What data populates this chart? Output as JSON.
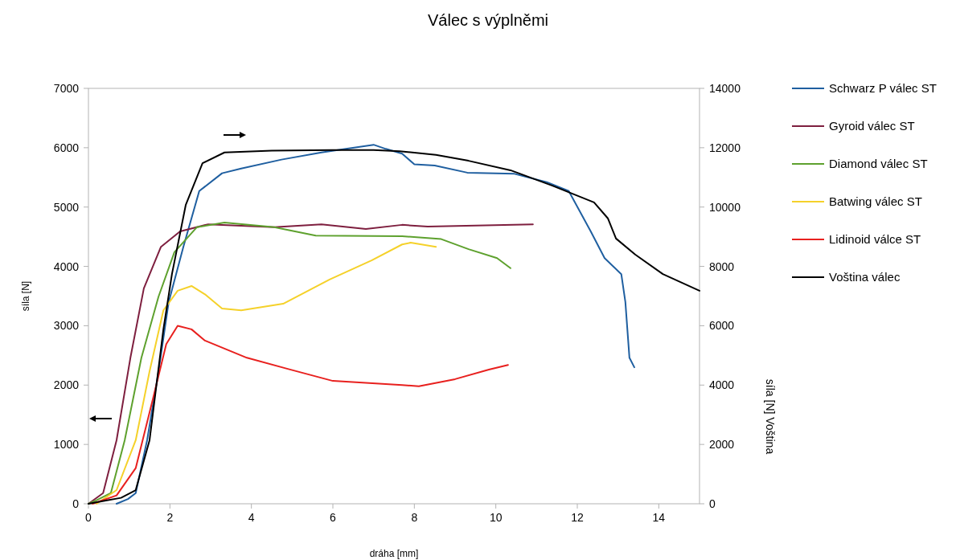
{
  "chart_data": {
    "type": "line",
    "title": "Válec s výplněmi",
    "xlabel": "dráha [mm]",
    "ylabel": "síla [N]",
    "y2label": "síla [N] Voština",
    "xlim": [
      0,
      15
    ],
    "xticks": [
      0,
      2,
      4,
      6,
      8,
      10,
      12,
      14
    ],
    "ylim": [
      0,
      7000
    ],
    "yticks": [
      0,
      1000,
      2000,
      3000,
      4000,
      5000,
      6000,
      7000
    ],
    "y2lim": [
      0,
      14000
    ],
    "y2ticks": [
      0,
      2000,
      4000,
      6000,
      8000,
      10000,
      12000,
      14000
    ],
    "grid": false,
    "legend": "right",
    "line_style": "solid",
    "series": [
      {
        "name": "Schwarz P válec ST",
        "color": "#1f5fa0",
        "x": [
          0.69,
          0.97,
          1.16,
          1.44,
          1.72,
          1.97,
          2.33,
          2.72,
          3.28,
          3.75,
          4.74,
          5.72,
          6.32,
          7.0,
          7.3,
          7.7,
          8.0,
          8.5,
          9.3,
          10.46,
          11.25,
          11.79,
          12.33,
          12.67,
          13.08,
          13.18,
          13.28,
          13.4
        ],
        "values": [
          0,
          80,
          180,
          1070,
          2230,
          3400,
          4330,
          5270,
          5570,
          5650,
          5800,
          5920,
          5980,
          6050,
          5980,
          5900,
          5720,
          5700,
          5580,
          5560,
          5420,
          5270,
          4590,
          4140,
          3870,
          3400,
          2460,
          2300
        ]
      },
      {
        "name": "Gyroid válec ST",
        "color": "#7e1f3f",
        "x": [
          0,
          0.36,
          0.69,
          1.03,
          1.36,
          1.78,
          2.25,
          2.94,
          4.56,
          5.72,
          6.81,
          7.7,
          8.33,
          10.91
        ],
        "values": [
          0,
          180,
          1070,
          2460,
          3630,
          4330,
          4590,
          4710,
          4660,
          4710,
          4630,
          4700,
          4670,
          4710
        ]
      },
      {
        "name": "Diamond válec ST",
        "color": "#5ea12e",
        "x": [
          0,
          0.14,
          0.55,
          0.89,
          1.3,
          1.72,
          2.11,
          2.66,
          3.34,
          4.56,
          5.58,
          7.7,
          8.66,
          9.33,
          10.03,
          10.36
        ],
        "values": [
          0,
          40,
          180,
          1070,
          2460,
          3490,
          4240,
          4660,
          4740,
          4660,
          4520,
          4510,
          4460,
          4290,
          4140,
          3970
        ]
      },
      {
        "name": "Batwing válec ST",
        "color": "#f5d12a",
        "x": [
          0.2,
          0.69,
          1.16,
          1.5,
          1.84,
          2.19,
          2.53,
          2.86,
          3.28,
          3.75,
          4.78,
          5.92,
          6.95,
          7.7,
          7.91,
          8.53
        ],
        "values": [
          0,
          230,
          1070,
          2230,
          3260,
          3590,
          3670,
          3530,
          3290,
          3260,
          3370,
          3780,
          4100,
          4370,
          4400,
          4330
        ]
      },
      {
        "name": "Lidinoid válce ST",
        "color": "#e8201e",
        "x": [
          0.1,
          0.69,
          1.16,
          1.58,
          1.91,
          2.19,
          2.53,
          2.86,
          3.89,
          4.91,
          6.0,
          7.7,
          8.11,
          9.0,
          9.83,
          10.3
        ],
        "values": [
          0,
          140,
          600,
          1760,
          2690,
          3000,
          2940,
          2750,
          2460,
          2270,
          2070,
          2000,
          1980,
          2100,
          2260,
          2340
        ]
      },
      {
        "name": "Voština válec",
        "color": "#000000",
        "axis": "y2",
        "x": [
          0,
          0.4,
          0.8,
          1.16,
          1.5,
          1.84,
          2.05,
          2.39,
          2.8,
          3.34,
          4.5,
          6.0,
          7.0,
          7.64,
          8.53,
          9.33,
          10.36,
          11.39,
          12.41,
          12.75,
          12.95,
          13.42,
          14.1,
          15
        ],
        "values": [
          0,
          100,
          200,
          460,
          2140,
          5880,
          7740,
          10080,
          11480,
          11840,
          11900,
          11920,
          11920,
          11880,
          11760,
          11560,
          11240,
          10720,
          10160,
          9620,
          8940,
          8400,
          7740,
          7180
        ]
      }
    ]
  }
}
